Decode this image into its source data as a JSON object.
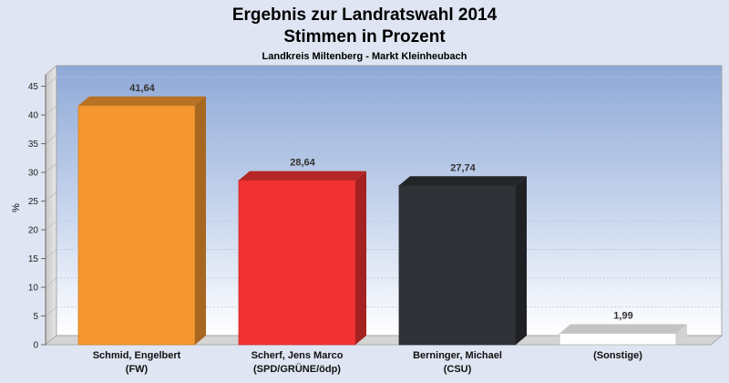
{
  "chart_data": {
    "type": "bar",
    "title": "Ergebnis zur Landratswahl 2014",
    "subtitle_line2": "Stimmen in Prozent",
    "subtitle": "Landkreis Miltenberg - Markt Kleinheubach",
    "ylabel": "%",
    "ylim": [
      0,
      47
    ],
    "yticks": [
      0,
      5,
      10,
      15,
      20,
      25,
      30,
      35,
      40,
      45
    ],
    "categories": [
      [
        "Schmid, Engelbert",
        "(FW)"
      ],
      [
        "Scherf, Jens Marco",
        "(SPD/GRÜNE/ödp)"
      ],
      [
        "Berninger, Michael",
        "(CSU)"
      ],
      [
        "(Sonstige)",
        ""
      ]
    ],
    "values": [
      41.64,
      28.64,
      27.74,
      1.99
    ],
    "value_labels": [
      "41,64",
      "28,64",
      "27,74",
      "1,99"
    ],
    "colors": [
      "#f5982f",
      "#f23232",
      "#2f3137",
      "#ffffff"
    ],
    "grid": true
  }
}
